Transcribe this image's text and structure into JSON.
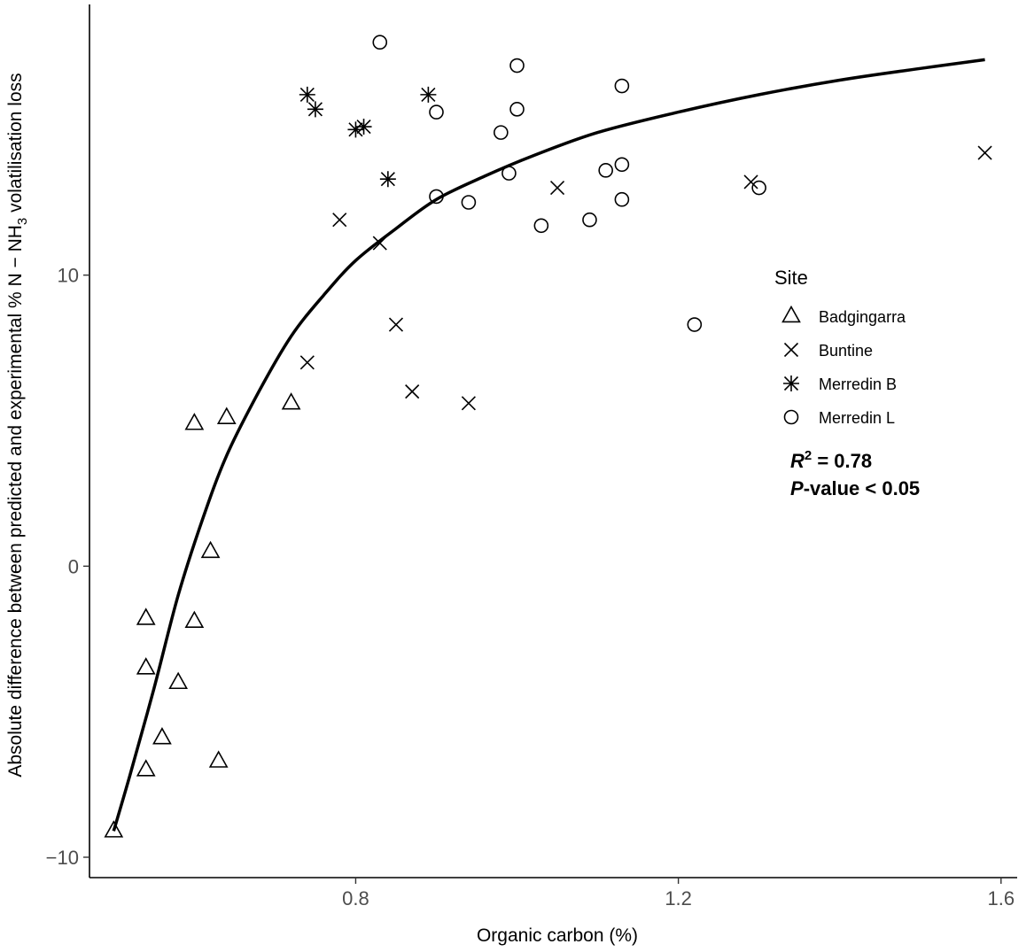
{
  "chart_data": {
    "type": "scatter",
    "xlabel": "Organic carbon (%)",
    "ylabel_parts": {
      "before": "Absolute difference between predicted and experimental % N − NH",
      "subscript": "3",
      "after": " volatilisation loss"
    },
    "xlim": [
      0.47,
      1.62
    ],
    "ylim": [
      -10.7,
      19.3
    ],
    "x_ticks": [
      0.8,
      1.2,
      1.6
    ],
    "x_tick_labels": [
      "0.8",
      "1.2",
      "1.6"
    ],
    "y_ticks": [
      -10,
      0,
      10
    ],
    "y_tick_labels": [
      "−10",
      "0",
      "10"
    ],
    "grid": false,
    "legend": {
      "title": "Site",
      "position": "right",
      "entries": [
        {
          "label": "Badgingarra",
          "shape": "triangle"
        },
        {
          "label": "Buntine",
          "shape": "cross"
        },
        {
          "label": "Merredin B",
          "shape": "asterisk"
        },
        {
          "label": "Merredin L",
          "shape": "circle"
        }
      ]
    },
    "annotation": {
      "r2_symbol": "R",
      "r2_sup": "2",
      "r2_value": " = 0.78",
      "p_symbol": "P",
      "p_value": "-value < 0.05"
    },
    "series": [
      {
        "name": "Badgingarra",
        "shape": "triangle",
        "points": [
          [
            0.5,
            -9.1
          ],
          [
            0.54,
            -1.8
          ],
          [
            0.54,
            -3.5
          ],
          [
            0.54,
            -7.0
          ],
          [
            0.56,
            -5.9
          ],
          [
            0.58,
            -4.0
          ],
          [
            0.6,
            4.9
          ],
          [
            0.6,
            -1.9
          ],
          [
            0.62,
            0.5
          ],
          [
            0.63,
            -6.7
          ],
          [
            0.64,
            5.1
          ],
          [
            0.72,
            5.6
          ]
        ]
      },
      {
        "name": "Buntine",
        "shape": "cross",
        "points": [
          [
            0.74,
            7.0
          ],
          [
            0.78,
            11.9
          ],
          [
            0.83,
            11.1
          ],
          [
            0.85,
            8.3
          ],
          [
            0.87,
            6.0
          ],
          [
            0.94,
            5.6
          ],
          [
            1.05,
            13.0
          ],
          [
            1.29,
            13.2
          ],
          [
            1.58,
            14.2
          ]
        ]
      },
      {
        "name": "Merredin B",
        "shape": "asterisk",
        "points": [
          [
            0.74,
            16.2
          ],
          [
            0.75,
            15.7
          ],
          [
            0.8,
            15.0
          ],
          [
            0.81,
            15.1
          ],
          [
            0.84,
            13.3
          ],
          [
            0.89,
            16.2
          ]
        ]
      },
      {
        "name": "Merredin L",
        "shape": "circle",
        "points": [
          [
            0.83,
            18.0
          ],
          [
            0.9,
            15.6
          ],
          [
            0.9,
            12.7
          ],
          [
            0.94,
            12.5
          ],
          [
            0.98,
            14.9
          ],
          [
            0.99,
            13.5
          ],
          [
            1.0,
            17.2
          ],
          [
            1.0,
            15.7
          ],
          [
            1.03,
            11.7
          ],
          [
            1.09,
            11.9
          ],
          [
            1.11,
            13.6
          ],
          [
            1.13,
            16.5
          ],
          [
            1.13,
            13.8
          ],
          [
            1.13,
            12.6
          ],
          [
            1.22,
            8.3
          ],
          [
            1.3,
            13.0
          ]
        ]
      }
    ],
    "fit_curve": {
      "x": [
        0.5,
        0.52,
        0.55,
        0.58,
        0.61,
        0.64,
        0.68,
        0.72,
        0.76,
        0.8,
        0.85,
        0.9,
        0.96,
        1.02,
        1.1,
        1.2,
        1.3,
        1.4,
        1.5,
        1.58
      ],
      "y": [
        -9.1,
        -7.2,
        -4.2,
        -1.0,
        1.6,
        3.8,
        6.0,
        7.9,
        9.3,
        10.5,
        11.6,
        12.6,
        13.4,
        14.1,
        14.9,
        15.6,
        16.2,
        16.7,
        17.1,
        17.4
      ]
    }
  }
}
